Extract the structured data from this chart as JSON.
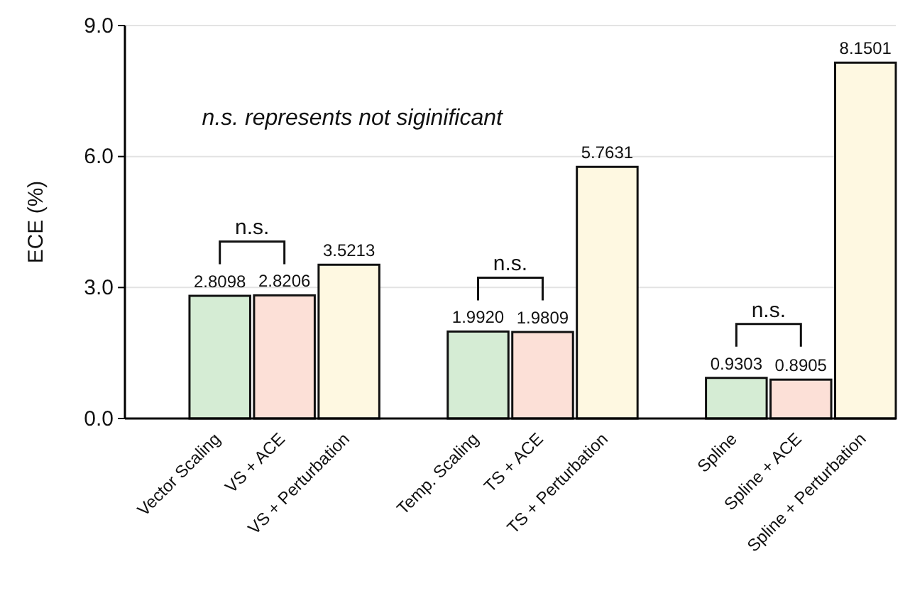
{
  "chart_data": {
    "type": "bar",
    "ylabel": "ECE (%)",
    "categories": [
      null,
      "Vector Scaling",
      "VS + ACE",
      "VS + Perturbation",
      null,
      "Temp. Scaling",
      "TS + ACE",
      "TS + Perturbation",
      null,
      "Spline",
      "Spline + ACE",
      "Spline + Perturbation"
    ],
    "values": [
      null,
      2.8098,
      2.8206,
      3.5213,
      null,
      1.992,
      1.9809,
      5.7631,
      null,
      0.9303,
      0.8905,
      8.1501
    ],
    "value_labels": [
      null,
      "2.8098",
      "2.8206",
      "3.5213",
      null,
      "1.9920",
      "1.9809",
      "5.7631",
      null,
      "0.9303",
      "0.8905",
      "8.1501"
    ],
    "colors": [
      null,
      "#d5ecd4",
      "#fce0d7",
      "#fef8e1",
      null,
      "#d5ecd4",
      "#fce0d7",
      "#fef8e1",
      null,
      "#d5ecd4",
      "#fce0d7",
      "#fef8e1"
    ],
    "ylim": [
      0,
      9
    ],
    "yticks": [
      {
        "value": 0,
        "label": "0.0"
      },
      {
        "value": 3,
        "label": "3.0"
      },
      {
        "value": 6,
        "label": "6.0"
      },
      {
        "value": 9,
        "label": "9.0"
      }
    ],
    "grid": "y",
    "annotations": [
      "n.s. represents not siginificant",
      "n.s.",
      "n.s.",
      "n.s."
    ]
  }
}
